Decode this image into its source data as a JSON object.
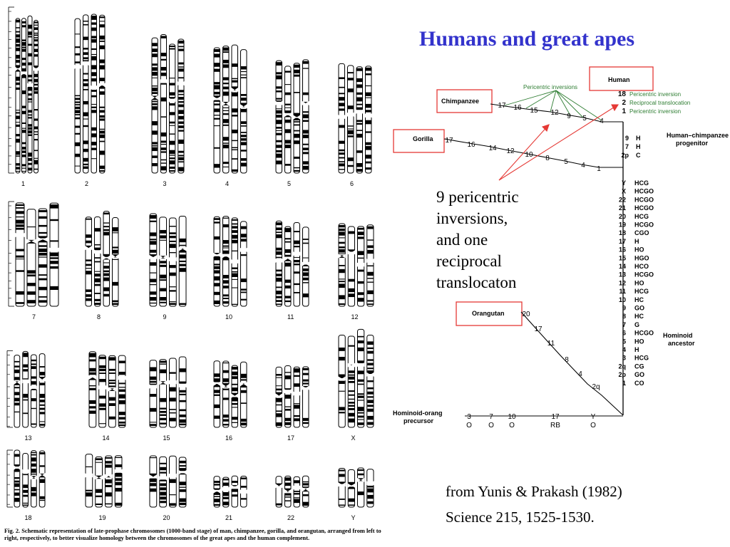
{
  "title": "Humans and great apes",
  "karyotype": {
    "labels": [
      "1",
      "2",
      "3",
      "4",
      "5",
      "6",
      "7",
      "8",
      "9",
      "10",
      "11",
      "12",
      "13",
      "14",
      "15",
      "16",
      "17",
      "X",
      "18",
      "19",
      "20",
      "21",
      "22",
      "Y"
    ],
    "caption": "Fig. 2. Schematic representation of late-prophase chromosomes (1000-band stage) of man, chimpanzee, gorilla, and orangutan, arranged from left to right, respectively, to better visualize homology between the chromosomes of the great apes and the human complement."
  },
  "tree": {
    "nodes": {
      "human": "Human",
      "chimpanzee": "Chimpanzee",
      "gorilla": "Gorilla",
      "orangutan": "Orangutan",
      "human_chimp_progenitor": [
        "Human–chimpanzee",
        "progenitor"
      ],
      "hominoid_ancestor": [
        "Hominoid",
        "ancestor"
      ],
      "hominoid_orang_precursor": [
        "Hominoid-orang",
        "precursor"
      ]
    },
    "chimp_branch": [
      "17",
      "16",
      "15",
      "12",
      "9",
      "5",
      "4"
    ],
    "gorilla_branch": [
      "17",
      "16",
      "14",
      "12",
      "10",
      "8",
      "5",
      "4",
      "1"
    ],
    "orangutan_branch": [
      "20",
      "17",
      "11",
      "8",
      "4",
      "2q"
    ],
    "precursor_branch": {
      "top": [
        "3",
        "7",
        "10",
        "17",
        "Y"
      ],
      "bottom": [
        "O",
        "O",
        "O",
        "RB",
        "O"
      ]
    },
    "pericentric_label": "Pericentric inversions",
    "human_changes": [
      {
        "num": "18",
        "desc": "Pericentric inversion"
      },
      {
        "num": "2",
        "desc": "Reciprocal translocation"
      },
      {
        "num": "1",
        "desc": "Pericentric inversion"
      }
    ],
    "progenitor_list": [
      [
        "9",
        "H"
      ],
      [
        "7",
        "H"
      ],
      [
        "2p",
        "C"
      ]
    ],
    "ancestor_list": [
      [
        "Y",
        "HCG"
      ],
      [
        "X",
        "HCGO"
      ],
      [
        "22",
        "HCGO"
      ],
      [
        "21",
        "HCGO"
      ],
      [
        "20",
        "HCG"
      ],
      [
        "19",
        "HCGO"
      ],
      [
        "18",
        "CGO"
      ],
      [
        "17",
        "H"
      ],
      [
        "16",
        "HO"
      ],
      [
        "15",
        "HGO"
      ],
      [
        "14",
        "HCO"
      ],
      [
        "13",
        "HCGO"
      ],
      [
        "12",
        "HO"
      ],
      [
        "11",
        "HCG"
      ],
      [
        "10",
        "HC"
      ],
      [
        "9",
        "GO"
      ],
      [
        "8",
        "HC"
      ],
      [
        "7",
        "G"
      ],
      [
        "6",
        "HCGO"
      ],
      [
        "5",
        "HO"
      ],
      [
        "4",
        "H"
      ],
      [
        "3",
        "HCG"
      ],
      [
        "2q",
        "CG"
      ],
      [
        "2p",
        "GO"
      ],
      [
        "1",
        "CO"
      ]
    ]
  },
  "callout": [
    "9 pericentric",
    "inversions,",
    "and one",
    "reciprocal",
    "translocaton"
  ],
  "citation": [
    "from Yunis & Prakash (1982)",
    "Science 215, 1525-1530."
  ],
  "colors": {
    "title": "#3333cc",
    "annotation_green": "#2e7d32",
    "box_red": "#e53935",
    "arrow_red": "#e53935"
  }
}
